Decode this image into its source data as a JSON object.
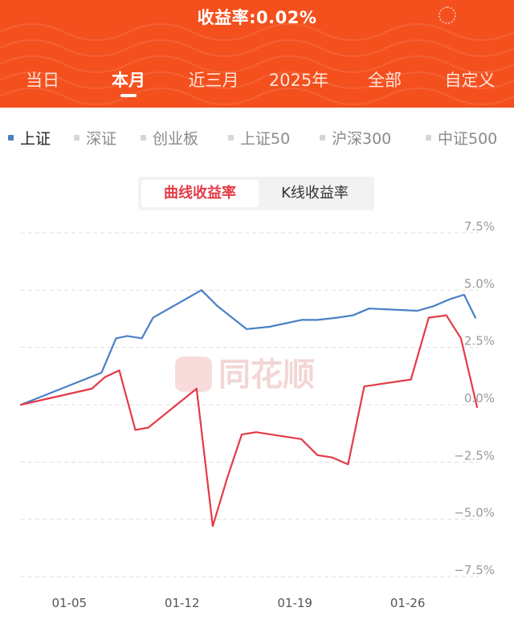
{
  "header": {
    "title": "收益率:0.02%",
    "tabs": [
      {
        "label": "当日"
      },
      {
        "label": "本月"
      },
      {
        "label": "近三月"
      },
      {
        "label": "2025年"
      },
      {
        "label": "全部"
      },
      {
        "label": "自定义"
      }
    ],
    "active_tab": "本月",
    "color": "#f4501e"
  },
  "legend": {
    "items": [
      {
        "label": "上证"
      },
      {
        "label": "深证"
      },
      {
        "label": "创业板"
      },
      {
        "label": "上证50"
      },
      {
        "label": "沪深300"
      },
      {
        "label": "中证500"
      }
    ],
    "active": "上证"
  },
  "toggle": {
    "options": [
      {
        "label": "曲线收益率"
      },
      {
        "label": "K线收益率"
      }
    ],
    "active": "曲线收益率"
  },
  "watermark": {
    "text": "同花顺"
  },
  "chart_data": {
    "type": "line",
    "y_ticks": [
      "7.5%",
      "5.0%",
      "2.5%",
      "0.0%",
      "−2.5%",
      "−5.0%",
      "−7.5%"
    ],
    "ylim": [
      -7.5,
      7.5
    ],
    "x_ticks": [
      "01-05",
      "01-12",
      "01-19",
      "01-26"
    ],
    "x_tick_positions": [
      5,
      12,
      19,
      26
    ],
    "xlim": [
      1,
      31
    ],
    "grid": true,
    "series": [
      {
        "color": "#4a7fc6",
        "x": [
          2,
          7,
          7.9,
          8.6,
          9.5,
          10.2,
          13.2,
          14.2,
          16,
          17.4,
          19.4,
          20.4,
          21.6,
          22.6,
          23.6,
          26.6,
          27.6,
          28.6,
          29.5,
          30.2
        ],
        "values": [
          0.0,
          1.4,
          2.9,
          3.0,
          2.9,
          3.8,
          5.0,
          4.3,
          3.3,
          3.4,
          3.7,
          3.7,
          3.8,
          3.9,
          4.2,
          4.1,
          4.3,
          4.6,
          4.8,
          3.8
        ]
      },
      {
        "color": "#e33b45",
        "x": [
          2,
          6.4,
          7.2,
          8.1,
          9.1,
          9.9,
          12.9,
          13.9,
          14.8,
          15.7,
          16.6,
          19.4,
          20.4,
          21.3,
          22.3,
          23.3,
          26.2,
          27.3,
          28.4,
          29.3,
          30.3
        ],
        "values": [
          0.0,
          0.7,
          1.2,
          1.5,
          -1.1,
          -1.0,
          0.7,
          -5.3,
          -3.2,
          -1.3,
          -1.2,
          -1.5,
          -2.2,
          -2.3,
          -2.6,
          0.8,
          1.1,
          3.8,
          3.9,
          2.9,
          -0.1
        ]
      }
    ]
  }
}
